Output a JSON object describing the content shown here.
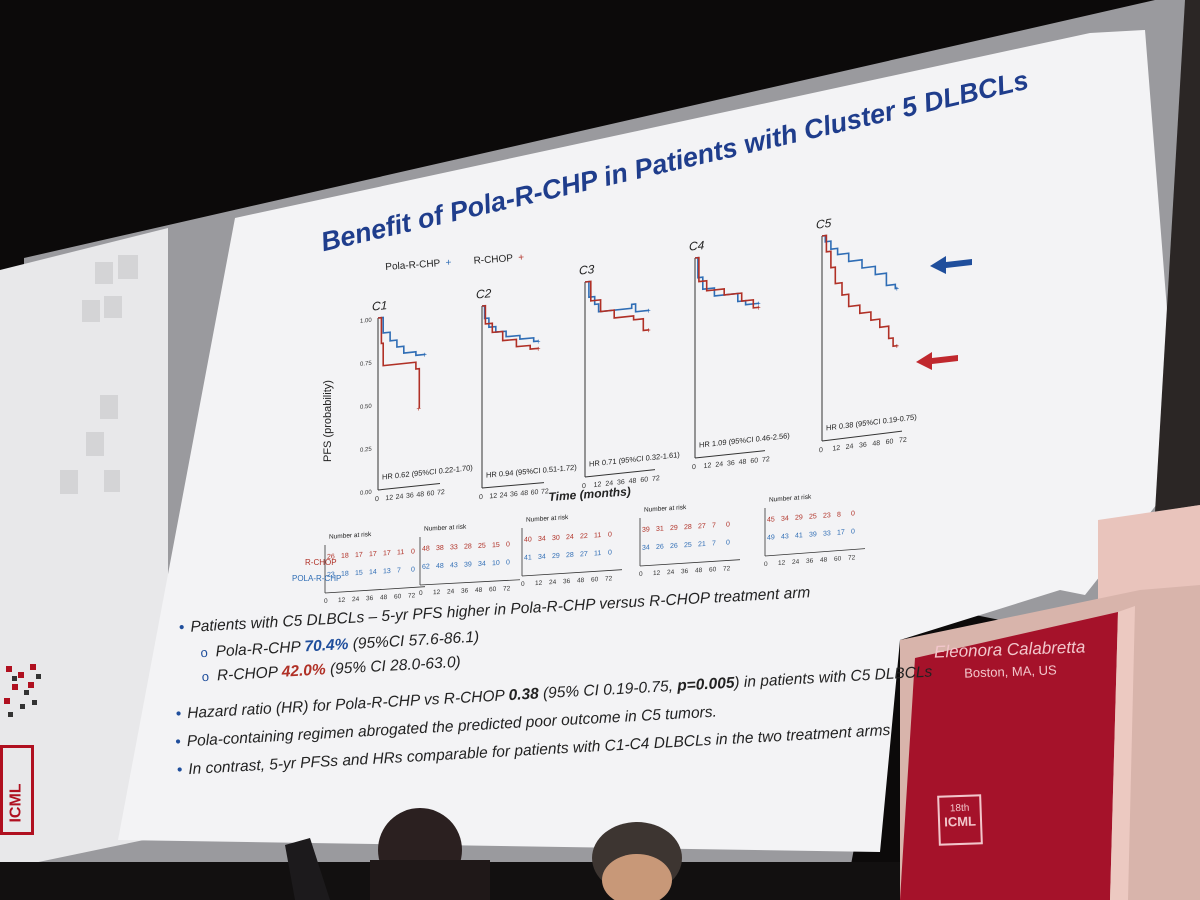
{
  "slide": {
    "title": "Benefit of Pola-R-CHP in Patients with Cluster 5 DLBCLs",
    "bullets": [
      {
        "text": "Patients with C5 DLBCLs – 5-yr PFS higher in Pola-R-CHP versus R-CHOP treatment arm"
      },
      {
        "prefix": "Pola-R-CHP ",
        "value": "70.4%",
        "suffix": " (95%CI 57.6-86.1)"
      },
      {
        "prefix": "R-CHOP ",
        "value": "42.0%",
        "suffix": " (95% CI 28.0-63.0)"
      },
      {
        "prefix": "Hazard ratio (HR) for Pola-R-CHP vs R-CHOP ",
        "value": "0.38",
        "middle": " (95% CI 0.19-0.75, ",
        "p": "p=0.005",
        "suffix": ") in patients with C5 DLBCLs"
      },
      {
        "text": "Pola-containing regimen abrogated the predicted poor outcome in C5 tumors."
      },
      {
        "text": "In contrast, 5-yr PFSs and HRs comparable for patients with C1-C4 DLBCLs in the two treatment arms"
      }
    ],
    "legend": {
      "pola": "Pola-R-CHP",
      "rchop": "R-CHOP"
    },
    "y_axis_label": "PFS (probability)",
    "x_axis_label": "Time (months)",
    "number_at_risk_label": "Number at risk",
    "row_labels": {
      "rchop": "R-CHOP",
      "pola": "POLA-R-CHP"
    },
    "colors": {
      "pola": "#2f6db5",
      "rchop": "#b03026",
      "title": "#1f3d8c"
    }
  },
  "chart_data": [
    {
      "type": "line",
      "title": "C1",
      "hr": "HR 0.62 (95%CI 0.22-1.70)",
      "x_ticks": [
        "0",
        "12",
        "24",
        "36",
        "48",
        "60",
        "72"
      ],
      "y_ticks": [
        "0.00",
        "0.25",
        "0.50",
        "0.75",
        "1.00"
      ],
      "ylim": [
        0,
        1
      ],
      "xlim": [
        0,
        72
      ],
      "series": [
        {
          "name": "Pola-R-CHP",
          "x": [
            0,
            6,
            6,
            14,
            14,
            22,
            22,
            30,
            30,
            44,
            44,
            50,
            55
          ],
          "y": [
            1.0,
            1.0,
            0.91,
            0.91,
            0.86,
            0.86,
            0.82,
            0.82,
            0.78,
            0.78,
            0.76,
            0.76,
            0.76
          ]
        },
        {
          "name": "R-CHOP",
          "x": [
            0,
            4,
            4,
            6,
            6,
            44,
            44,
            48,
            48
          ],
          "y": [
            1.0,
            1.0,
            0.85,
            0.85,
            0.72,
            0.72,
            0.68,
            0.68,
            0.45
          ]
        }
      ],
      "at_risk": {
        "rchop": [
          "26",
          "18",
          "17",
          "17",
          "17",
          "11",
          "0"
        ],
        "pola": [
          "23",
          "18",
          "15",
          "14",
          "13",
          "7",
          "0"
        ]
      }
    },
    {
      "type": "line",
      "title": "C2",
      "hr": "HR 0.94 (95%CI 0.51-1.72)",
      "x_ticks": [
        "0",
        "12",
        "24",
        "36",
        "48",
        "60",
        "72"
      ],
      "ylim": [
        0,
        1
      ],
      "xlim": [
        0,
        72
      ],
      "series": [
        {
          "name": "Pola-R-CHP",
          "x": [
            0,
            3,
            3,
            8,
            8,
            16,
            16,
            28,
            28,
            44,
            44,
            60,
            60,
            66
          ],
          "y": [
            1.0,
            1.0,
            0.93,
            0.93,
            0.88,
            0.88,
            0.85,
            0.85,
            0.82,
            0.82,
            0.8,
            0.8,
            0.78,
            0.78
          ]
        },
        {
          "name": "R-CHOP",
          "x": [
            0,
            4,
            4,
            12,
            12,
            24,
            24,
            40,
            40,
            56,
            56,
            66
          ],
          "y": [
            1.0,
            1.0,
            0.9,
            0.9,
            0.85,
            0.85,
            0.8,
            0.8,
            0.76,
            0.76,
            0.74,
            0.74
          ]
        }
      ],
      "at_risk": {
        "rchop": [
          "48",
          "38",
          "33",
          "28",
          "25",
          "15",
          "0"
        ],
        "pola": [
          "62",
          "48",
          "43",
          "39",
          "34",
          "10",
          "0"
        ]
      }
    },
    {
      "type": "line",
      "title": "C3",
      "hr": "HR 0.71 (95%CI 0.32-1.61)",
      "x_ticks": [
        "0",
        "12",
        "24",
        "36",
        "48",
        "60",
        "72"
      ],
      "ylim": [
        0,
        1
      ],
      "xlim": [
        0,
        72
      ],
      "series": [
        {
          "name": "Pola-R-CHP",
          "x": [
            0,
            4,
            4,
            10,
            10,
            14,
            14,
            48,
            48,
            52,
            52,
            66
          ],
          "y": [
            1.0,
            1.0,
            0.92,
            0.92,
            0.88,
            0.88,
            0.84,
            0.84,
            0.86,
            0.86,
            0.82,
            0.82
          ]
        },
        {
          "name": "R-CHOP",
          "x": [
            0,
            6,
            6,
            16,
            16,
            30,
            30,
            50,
            50,
            60,
            60,
            66
          ],
          "y": [
            1.0,
            1.0,
            0.9,
            0.9,
            0.84,
            0.84,
            0.8,
            0.8,
            0.78,
            0.78,
            0.72,
            0.72
          ]
        }
      ],
      "at_risk": {
        "rchop": [
          "40",
          "34",
          "30",
          "24",
          "22",
          "11",
          "0"
        ],
        "pola": [
          "41",
          "34",
          "29",
          "28",
          "27",
          "11",
          "0"
        ]
      }
    },
    {
      "type": "line",
      "title": "C4",
      "hr": "HR 1.09 (95%CI 0.46-2.56)",
      "x_ticks": [
        "0",
        "12",
        "24",
        "36",
        "48",
        "60",
        "72"
      ],
      "ylim": [
        0,
        1
      ],
      "xlim": [
        0,
        72
      ],
      "series": [
        {
          "name": "Pola-R-CHP",
          "x": [
            0,
            3,
            3,
            8,
            8,
            20,
            20,
            44,
            44,
            52,
            52,
            66
          ],
          "y": [
            1.0,
            1.0,
            0.9,
            0.9,
            0.84,
            0.84,
            0.8,
            0.8,
            0.76,
            0.76,
            0.74,
            0.74
          ]
        },
        {
          "name": "R-CHOP",
          "x": [
            0,
            4,
            4,
            12,
            12,
            30,
            30,
            48,
            48,
            60,
            60,
            66
          ],
          "y": [
            1.0,
            1.0,
            0.88,
            0.88,
            0.83,
            0.83,
            0.8,
            0.8,
            0.76,
            0.76,
            0.72,
            0.72
          ]
        }
      ],
      "at_risk": {
        "rchop": [
          "39",
          "31",
          "29",
          "28",
          "27",
          "7",
          "0"
        ],
        "pola": [
          "34",
          "26",
          "26",
          "25",
          "21",
          "7",
          "0"
        ]
      }
    },
    {
      "type": "line",
      "title": "C5",
      "hr": "HR 0.38 (95%CI 0.19-0.75)",
      "x_ticks": [
        "0",
        "12",
        "24",
        "36",
        "48",
        "60",
        "72"
      ],
      "ylim": [
        0,
        1
      ],
      "xlim": [
        0,
        72
      ],
      "series": [
        {
          "name": "Pola-R-CHP",
          "x": [
            0,
            3,
            3,
            8,
            8,
            14,
            14,
            24,
            24,
            36,
            36,
            48,
            48,
            58,
            58,
            66,
            66,
            68
          ],
          "y": [
            1.0,
            1.0,
            0.97,
            0.97,
            0.93,
            0.93,
            0.9,
            0.9,
            0.86,
            0.86,
            0.82,
            0.82,
            0.78,
            0.78,
            0.72,
            0.72,
            0.7,
            0.7
          ]
        },
        {
          "name": "R-CHOP",
          "x": [
            0,
            4,
            4,
            8,
            8,
            12,
            12,
            18,
            18,
            24,
            24,
            34,
            34,
            44,
            44,
            52,
            52,
            60,
            60,
            64,
            64,
            68
          ],
          "y": [
            1.0,
            1.0,
            0.92,
            0.92,
            0.84,
            0.84,
            0.76,
            0.76,
            0.7,
            0.7,
            0.64,
            0.64,
            0.6,
            0.6,
            0.56,
            0.56,
            0.52,
            0.52,
            0.46,
            0.46,
            0.42,
            0.42
          ]
        }
      ],
      "at_risk": {
        "rchop": [
          "45",
          "34",
          "29",
          "25",
          "23",
          "8",
          "0"
        ],
        "pola": [
          "49",
          "43",
          "41",
          "39",
          "33",
          "17",
          "0"
        ]
      }
    }
  ],
  "podium": {
    "name": "Eleonora Calabretta",
    "location": "Boston, MA, US",
    "logo_top": "18th",
    "logo_bottom": "ICML"
  },
  "side_logo": "ICML"
}
